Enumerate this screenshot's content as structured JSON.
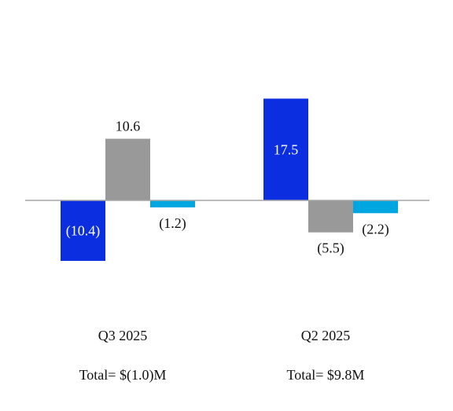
{
  "chart_data": {
    "type": "bar",
    "categories": [
      "Q3 2025",
      "Q2 2025"
    ],
    "totals": [
      "Total= $(1.0)M",
      "Total= $9.8M"
    ],
    "series": [
      {
        "values": [
          -10.4,
          17.5
        ],
        "labels": [
          "(10.4)",
          "17.5"
        ],
        "color": "#0a2ee0",
        "label_color": "#ffffff",
        "label_position": "inside"
      },
      {
        "values": [
          10.6,
          -5.5
        ],
        "labels": [
          "10.6",
          "(5.5)"
        ],
        "color": "#999999",
        "label_color": "#111111",
        "label_position": "outside"
      },
      {
        "values": [
          -1.2,
          -2.2
        ],
        "labels": [
          "(1.2)",
          "(2.2)"
        ],
        "color": "#00a6e0",
        "label_color": "#111111",
        "label_position": "outside"
      }
    ],
    "baseline_color": "#a6a6a6",
    "grid": false,
    "legend": "none",
    "ylim": [
      -25,
      25
    ]
  }
}
